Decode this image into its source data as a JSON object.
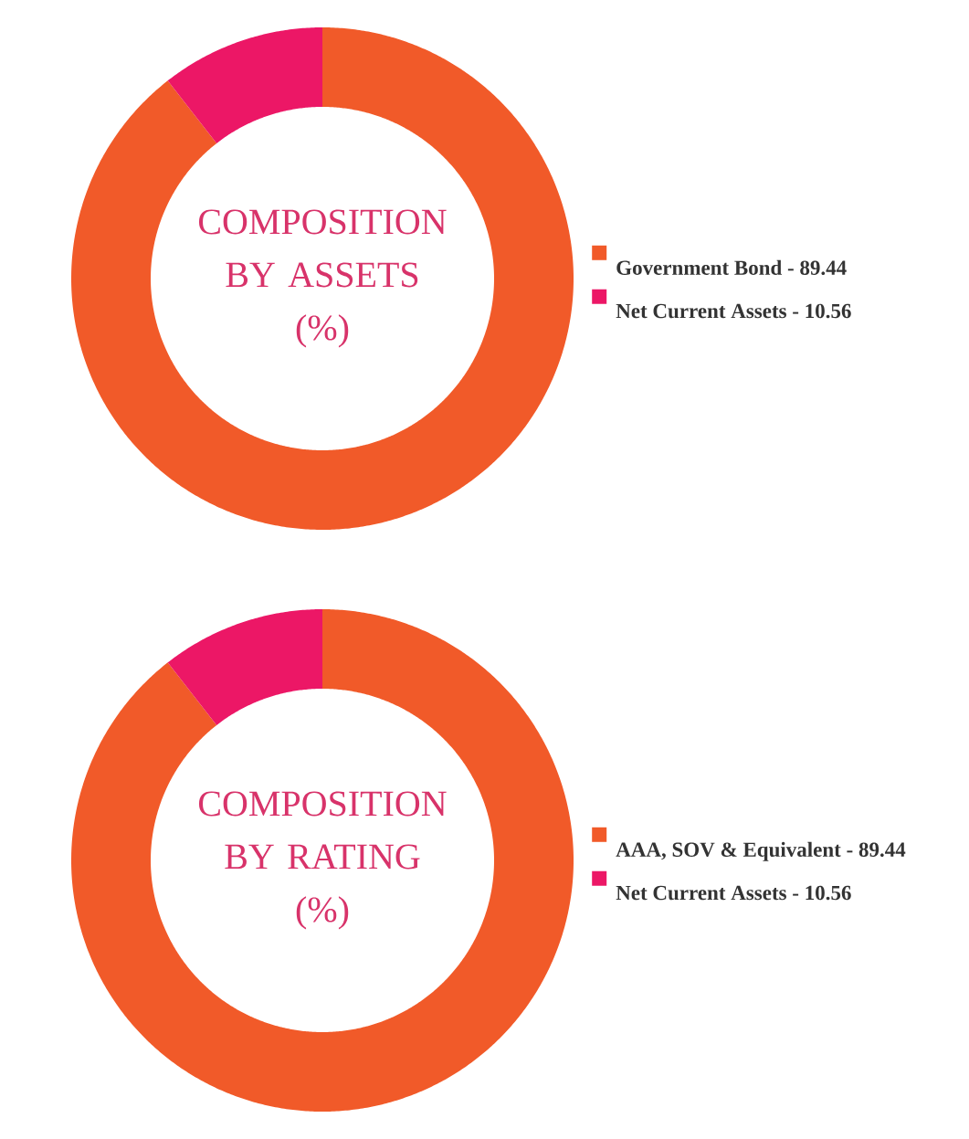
{
  "chart_data": [
    {
      "type": "donut",
      "title": "COMPOSITION BY ASSETS",
      "subtitle": "(%)",
      "categories": [
        "Government Bond - 89.44",
        "Net Current Assets - 10.56"
      ],
      "values": [
        89.44,
        10.56
      ],
      "colors": [
        "#f15a29",
        "#ec1766"
      ],
      "legend": "right"
    },
    {
      "type": "donut",
      "title": "COMPOSITION BY RATING",
      "subtitle": "(%)",
      "categories": [
        "AAA, SOV & Equivalent - 89.44",
        "Net Current Assets - 10.56"
      ],
      "values": [
        89.44,
        10.56
      ],
      "colors": [
        "#f15a29",
        "#ec1766"
      ],
      "legend": "right"
    }
  ]
}
